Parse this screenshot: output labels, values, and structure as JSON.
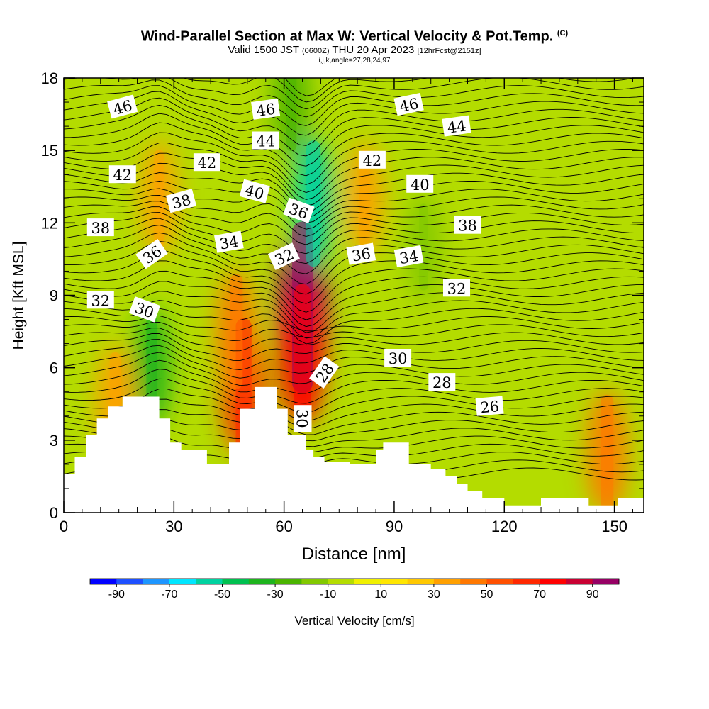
{
  "title": {
    "main": "Wind-Parallel Section at Max W: Vertical Velocity & Pot.Temp.",
    "copyright": "(C)",
    "valid_prefix": "Valid 1500 JST",
    "valid_utc": "(0600Z)",
    "valid_suffix": "THU 20 Apr 2023",
    "forecast": "[12hrFcst@2151z]",
    "indices": "i,j,k,angle=27,28,24,97"
  },
  "chart_data": {
    "type": "heatmap",
    "xlabel": "Distance [nm]",
    "ylabel": "Height [Kft MSL]",
    "xlim": [
      0,
      158
    ],
    "ylim": [
      0,
      18
    ],
    "x_ticks": [
      0,
      30,
      60,
      90,
      120,
      150
    ],
    "y_ticks": [
      0,
      3,
      6,
      9,
      12,
      15,
      18
    ],
    "colorbar": {
      "label": "Vertical Velocity [cm/s]",
      "tick_labels": [
        "-90",
        "-70",
        "-50",
        "-30",
        "-10",
        "10",
        "30",
        "50",
        "70",
        "90"
      ],
      "levels": [
        -100,
        -90,
        -80,
        -70,
        -60,
        -50,
        -40,
        -30,
        -20,
        -10,
        0,
        10,
        20,
        30,
        40,
        50,
        60,
        70,
        80,
        90,
        100
      ],
      "colors": [
        "#0000ff",
        "#1e50ff",
        "#1e96ff",
        "#00e6ff",
        "#00d2a0",
        "#00c050",
        "#1eb41e",
        "#4bb400",
        "#82c800",
        "#b4dc00",
        "#f0f000",
        "#ffe600",
        "#ffc800",
        "#ffa000",
        "#ff7800",
        "#ff5000",
        "#ff2800",
        "#ff0000",
        "#c80032",
        "#960064"
      ]
    },
    "terrain": [
      [
        0,
        1.6
      ],
      [
        3,
        1.6
      ],
      [
        3,
        2.3
      ],
      [
        6,
        2.3
      ],
      [
        6,
        3.2
      ],
      [
        9,
        3.2
      ],
      [
        9,
        3.9
      ],
      [
        12,
        3.9
      ],
      [
        12,
        4.4
      ],
      [
        16,
        4.4
      ],
      [
        16,
        4.8
      ],
      [
        26,
        4.8
      ],
      [
        26,
        3.9
      ],
      [
        29,
        3.9
      ],
      [
        29,
        2.9
      ],
      [
        32,
        2.9
      ],
      [
        32,
        2.6
      ],
      [
        39,
        2.6
      ],
      [
        39,
        2.0
      ],
      [
        45,
        2.0
      ],
      [
        45,
        2.9
      ],
      [
        48,
        2.9
      ],
      [
        48,
        4.3
      ],
      [
        52,
        4.3
      ],
      [
        52,
        5.2
      ],
      [
        58,
        5.2
      ],
      [
        58,
        4.3
      ],
      [
        61,
        4.3
      ],
      [
        61,
        3.2
      ],
      [
        66,
        3.2
      ],
      [
        66,
        2.6
      ],
      [
        68,
        2.6
      ],
      [
        68,
        2.3
      ],
      [
        71,
        2.3
      ],
      [
        71,
        2.1
      ],
      [
        78,
        2.1
      ],
      [
        78,
        2.0
      ],
      [
        85,
        2.0
      ],
      [
        85,
        2.6
      ],
      [
        87,
        2.6
      ],
      [
        87,
        2.9
      ],
      [
        94,
        2.9
      ],
      [
        94,
        2.0
      ],
      [
        100,
        2.0
      ],
      [
        100,
        1.8
      ],
      [
        104,
        1.8
      ],
      [
        104,
        1.5
      ],
      [
        107,
        1.5
      ],
      [
        107,
        1.2
      ],
      [
        110,
        1.2
      ],
      [
        110,
        0.9
      ],
      [
        114,
        0.9
      ],
      [
        114,
        0.6
      ],
      [
        120,
        0.6
      ],
      [
        120,
        0.3
      ],
      [
        130,
        0.3
      ],
      [
        130,
        0.6
      ],
      [
        143,
        0.6
      ],
      [
        143,
        0.3
      ],
      [
        151,
        0.3
      ],
      [
        151,
        0.6
      ],
      [
        158,
        0.6
      ]
    ],
    "velocity_features": [
      {
        "x": 65,
        "y": 8.5,
        "value": 95
      },
      {
        "x": 65,
        "y": 6.5,
        "value": 70
      },
      {
        "x": 49,
        "y": 5.2,
        "value": 65
      },
      {
        "x": 47,
        "y": 7.5,
        "value": 45
      },
      {
        "x": 26,
        "y": 13,
        "value": 30
      },
      {
        "x": 82,
        "y": 13,
        "value": 30
      },
      {
        "x": 14,
        "y": 4.5,
        "value": 35
      },
      {
        "x": 148,
        "y": 2.5,
        "value": 45
      },
      {
        "x": 68,
        "y": 12.8,
        "value": -55
      },
      {
        "x": 24,
        "y": 6,
        "value": -35
      },
      {
        "x": 62,
        "y": 17,
        "value": -30
      },
      {
        "x": 98,
        "y": 11,
        "value": -20
      }
    ],
    "contour_labels": [
      {
        "text": "46",
        "x": 16,
        "y": 16.8,
        "angle": -15
      },
      {
        "text": "46",
        "x": 55,
        "y": 16.7,
        "angle": -8
      },
      {
        "text": "46",
        "x": 94,
        "y": 16.9,
        "angle": -12
      },
      {
        "text": "44",
        "x": 55,
        "y": 15.4,
        "angle": 0
      },
      {
        "text": "44",
        "x": 107,
        "y": 16.0,
        "angle": -8
      },
      {
        "text": "42",
        "x": 16,
        "y": 14.0,
        "angle": 0
      },
      {
        "text": "42",
        "x": 39,
        "y": 14.5,
        "angle": 0
      },
      {
        "text": "42",
        "x": 84,
        "y": 14.6,
        "angle": 0
      },
      {
        "text": "40",
        "x": 52,
        "y": 13.3,
        "angle": 15
      },
      {
        "text": "40",
        "x": 97,
        "y": 13.6,
        "angle": 0
      },
      {
        "text": "38",
        "x": 32,
        "y": 12.9,
        "angle": -15
      },
      {
        "text": "38",
        "x": 10,
        "y": 11.8,
        "angle": 0
      },
      {
        "text": "38",
        "x": 110,
        "y": 11.9,
        "angle": 0
      },
      {
        "text": "36",
        "x": 64,
        "y": 12.5,
        "angle": 20
      },
      {
        "text": "36",
        "x": 24,
        "y": 10.7,
        "angle": -35
      },
      {
        "text": "36",
        "x": 81,
        "y": 10.7,
        "angle": -10
      },
      {
        "text": "34",
        "x": 45,
        "y": 11.2,
        "angle": -10
      },
      {
        "text": "34",
        "x": 94,
        "y": 10.6,
        "angle": -10
      },
      {
        "text": "32",
        "x": 60,
        "y": 10.6,
        "angle": -25
      },
      {
        "text": "32",
        "x": 10,
        "y": 8.8,
        "angle": 0
      },
      {
        "text": "32",
        "x": 107,
        "y": 9.3,
        "angle": 0
      },
      {
        "text": "30",
        "x": 22,
        "y": 8.4,
        "angle": 20
      },
      {
        "text": "30",
        "x": 91,
        "y": 6.4,
        "angle": 0
      },
      {
        "text": "30",
        "x": 65,
        "y": 3.9,
        "angle": 90
      },
      {
        "text": "28",
        "x": 71,
        "y": 5.8,
        "angle": -55
      },
      {
        "text": "28",
        "x": 103,
        "y": 5.4,
        "angle": 0
      },
      {
        "text": "26",
        "x": 116,
        "y": 4.4,
        "angle": -5
      }
    ]
  }
}
